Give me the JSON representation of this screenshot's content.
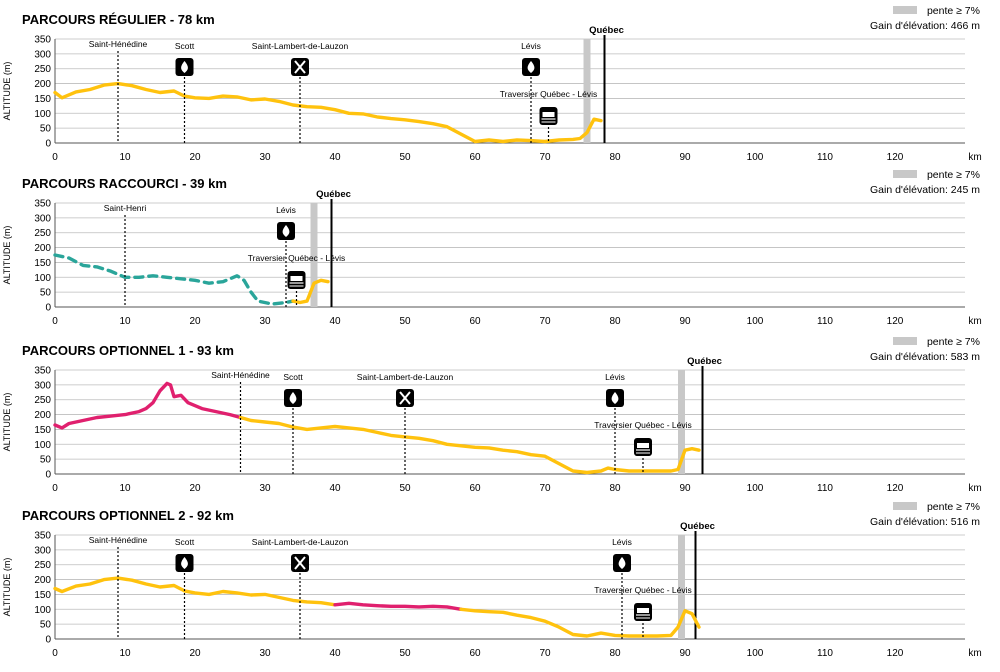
{
  "legend_label": "pente ≥ 7%",
  "x_unit": "km",
  "y_label": "ALTITUDE (m)",
  "colors": {
    "flat": "#FFC20E",
    "hilly": "#E0206E",
    "shortcut": "#2AA59A",
    "steep_band": "#C8C8C8"
  },
  "chart_data": [
    {
      "type": "line",
      "title": "PARCOURS RÉGULIER - 78 km",
      "elevation_gain": "Gain d'élévation: 466 m",
      "xlim": [
        0,
        130
      ],
      "ylim": [
        0,
        350
      ],
      "yticks": [
        0,
        50,
        100,
        150,
        200,
        250,
        300,
        350
      ],
      "xticks": [
        0,
        10,
        20,
        30,
        40,
        50,
        60,
        70,
        80,
        90,
        100,
        110,
        120
      ],
      "series": [
        {
          "style": "flat",
          "points": [
            [
              0,
              170
            ],
            [
              1,
              152
            ],
            [
              3,
              172
            ],
            [
              5,
              180
            ],
            [
              7,
              195
            ],
            [
              9,
              200
            ],
            [
              11,
              193
            ],
            [
              13,
              180
            ],
            [
              15,
              170
            ],
            [
              17,
              175
            ],
            [
              18.5,
              158
            ],
            [
              20,
              152
            ],
            [
              22,
              150
            ],
            [
              24,
              158
            ],
            [
              26,
              155
            ],
            [
              28,
              145
            ],
            [
              30,
              148
            ],
            [
              32,
              140
            ],
            [
              34,
              128
            ],
            [
              36,
              122
            ],
            [
              38,
              120
            ],
            [
              40,
              112
            ],
            [
              42,
              100
            ],
            [
              44,
              98
            ],
            [
              46,
              88
            ],
            [
              48,
              82
            ],
            [
              50,
              78
            ],
            [
              52,
              72
            ],
            [
              54,
              65
            ],
            [
              56,
              55
            ],
            [
              58,
              30
            ],
            [
              60,
              5
            ],
            [
              62,
              10
            ],
            [
              64,
              5
            ],
            [
              66,
              10
            ],
            [
              68,
              8
            ],
            [
              70,
              5
            ],
            [
              72,
              10
            ],
            [
              74,
              12
            ],
            [
              75,
              15
            ],
            [
              76,
              35
            ],
            [
              77,
              80
            ],
            [
              78,
              75
            ]
          ]
        }
      ],
      "steep_zones": [
        [
          75.5,
          76.5
        ]
      ],
      "end_km": 78.5,
      "end_label": "Québec",
      "pois": [
        {
          "km": 9,
          "label": "Saint-Hénédine",
          "icon": "none"
        },
        {
          "km": 18.5,
          "label": "Scott",
          "icon": "water-drop-icon"
        },
        {
          "km": 35,
          "label": "Saint-Lambert-de-Lauzon",
          "icon": "cutlery-icon"
        },
        {
          "km": 68,
          "label": "Lévis",
          "icon": "water-drop-icon"
        },
        {
          "km": 70.5,
          "label": "Traversier Québec - Lévis",
          "icon": "ferry-icon"
        }
      ]
    },
    {
      "type": "line",
      "title": "PARCOURS RACCOURCI - 39 km",
      "elevation_gain": "Gain d'élévation: 245 m",
      "xlim": [
        0,
        130
      ],
      "ylim": [
        0,
        350
      ],
      "yticks": [
        0,
        50,
        100,
        150,
        200,
        250,
        300,
        350
      ],
      "xticks": [
        0,
        10,
        20,
        30,
        40,
        50,
        60,
        70,
        80,
        90,
        100,
        110,
        120
      ],
      "series": [
        {
          "style": "shortcut",
          "points": [
            [
              0,
              175
            ],
            [
              2,
              165
            ],
            [
              4,
              140
            ],
            [
              6,
              135
            ],
            [
              8,
              120
            ],
            [
              10,
              100
            ],
            [
              12,
              100
            ],
            [
              14,
              105
            ],
            [
              16,
              100
            ],
            [
              18,
              95
            ],
            [
              20,
              90
            ],
            [
              22,
              80
            ],
            [
              24,
              85
            ],
            [
              26,
              105
            ],
            [
              27,
              90
            ],
            [
              28,
              50
            ],
            [
              29,
              20
            ],
            [
              31,
              10
            ],
            [
              33,
              15
            ],
            [
              34,
              20
            ]
          ]
        },
        {
          "style": "flat",
          "points": [
            [
              34,
              20
            ],
            [
              35,
              15
            ],
            [
              36,
              20
            ],
            [
              37,
              80
            ],
            [
              38,
              90
            ],
            [
              39,
              85
            ]
          ]
        }
      ],
      "steep_zones": [
        [
          36.5,
          37.5
        ]
      ],
      "end_km": 39.5,
      "end_label": "Québec",
      "pois": [
        {
          "km": 10,
          "label": "Saint-Henri",
          "icon": "none"
        },
        {
          "km": 33,
          "label": "Lévis",
          "icon": "water-drop-icon"
        },
        {
          "km": 34.5,
          "label": "Traversier Québec - Lévis",
          "icon": "ferry-icon"
        }
      ]
    },
    {
      "type": "line",
      "title": "PARCOURS OPTIONNEL 1 - 93 km",
      "elevation_gain": "Gain d'élévation: 583 m",
      "xlim": [
        0,
        130
      ],
      "ylim": [
        0,
        350
      ],
      "yticks": [
        0,
        50,
        100,
        150,
        200,
        250,
        300,
        350
      ],
      "xticks": [
        0,
        10,
        20,
        30,
        40,
        50,
        60,
        70,
        80,
        90,
        100,
        110,
        120
      ],
      "series": [
        {
          "style": "hilly",
          "points": [
            [
              0,
              165
            ],
            [
              1,
              155
            ],
            [
              2,
              170
            ],
            [
              4,
              180
            ],
            [
              6,
              190
            ],
            [
              8,
              195
            ],
            [
              10,
              200
            ],
            [
              12,
              210
            ],
            [
              13,
              220
            ],
            [
              14,
              240
            ],
            [
              15,
              280
            ],
            [
              16,
              305
            ],
            [
              16.5,
              300
            ],
            [
              17,
              260
            ],
            [
              18,
              265
            ],
            [
              19,
              240
            ],
            [
              21,
              220
            ],
            [
              23,
              210
            ],
            [
              25,
              200
            ],
            [
              26.5,
              190
            ]
          ]
        },
        {
          "style": "flat",
          "points": [
            [
              26.5,
              190
            ],
            [
              28,
              180
            ],
            [
              30,
              175
            ],
            [
              32,
              170
            ],
            [
              34,
              158
            ],
            [
              36,
              150
            ],
            [
              38,
              155
            ],
            [
              40,
              160
            ],
            [
              42,
              155
            ],
            [
              44,
              150
            ],
            [
              46,
              140
            ],
            [
              48,
              130
            ],
            [
              50,
              125
            ],
            [
              52,
              120
            ],
            [
              54,
              112
            ],
            [
              56,
              100
            ],
            [
              58,
              95
            ],
            [
              60,
              90
            ],
            [
              62,
              88
            ],
            [
              64,
              80
            ],
            [
              66,
              75
            ],
            [
              68,
              65
            ],
            [
              70,
              60
            ],
            [
              72,
              35
            ],
            [
              74,
              10
            ],
            [
              76,
              5
            ],
            [
              78,
              10
            ],
            [
              79,
              20
            ],
            [
              80,
              15
            ],
            [
              82,
              10
            ],
            [
              84,
              10
            ],
            [
              86,
              10
            ],
            [
              88,
              10
            ],
            [
              89,
              15
            ],
            [
              90,
              80
            ],
            [
              91,
              85
            ],
            [
              92,
              80
            ]
          ]
        }
      ],
      "steep_zones": [
        [
          89,
          90
        ]
      ],
      "end_km": 92.5,
      "end_label": "Québec",
      "pois": [
        {
          "km": 26.5,
          "label": "Saint-Hénédine",
          "icon": "none"
        },
        {
          "km": 34,
          "label": "Scott",
          "icon": "water-drop-icon"
        },
        {
          "km": 50,
          "label": "Saint-Lambert-de-Lauzon",
          "icon": "cutlery-icon"
        },
        {
          "km": 80,
          "label": "Lévis",
          "icon": "water-drop-icon"
        },
        {
          "km": 84,
          "label": "Traversier Québec - Lévis",
          "icon": "ferry-icon"
        }
      ]
    },
    {
      "type": "line",
      "title": "PARCOURS OPTIONNEL 2 - 92 km",
      "elevation_gain": "Gain d'élévation: 516 m",
      "xlim": [
        0,
        130
      ],
      "ylim": [
        0,
        350
      ],
      "yticks": [
        0,
        50,
        100,
        150,
        200,
        250,
        300,
        350
      ],
      "xticks": [
        0,
        10,
        20,
        30,
        40,
        50,
        60,
        70,
        80,
        90,
        100,
        110,
        120
      ],
      "series": [
        {
          "style": "flat",
          "points": [
            [
              0,
              170
            ],
            [
              1,
              160
            ],
            [
              3,
              178
            ],
            [
              5,
              185
            ],
            [
              7,
              200
            ],
            [
              9,
              205
            ],
            [
              11,
              198
            ],
            [
              13,
              185
            ],
            [
              15,
              175
            ],
            [
              17,
              180
            ],
            [
              18.5,
              162
            ],
            [
              20,
              155
            ],
            [
              22,
              150
            ],
            [
              24,
              160
            ],
            [
              26,
              155
            ],
            [
              28,
              148
            ],
            [
              30,
              150
            ],
            [
              32,
              140
            ],
            [
              34,
              130
            ],
            [
              36,
              125
            ],
            [
              38,
              122
            ],
            [
              40,
              115
            ]
          ]
        },
        {
          "style": "hilly",
          "points": [
            [
              40,
              115
            ],
            [
              42,
              120
            ],
            [
              44,
              115
            ],
            [
              46,
              112
            ],
            [
              48,
              110
            ],
            [
              50,
              110
            ],
            [
              52,
              108
            ],
            [
              54,
              110
            ],
            [
              56,
              108
            ],
            [
              58,
              100
            ]
          ]
        },
        {
          "style": "flat",
          "points": [
            [
              58,
              100
            ],
            [
              60,
              95
            ],
            [
              62,
              92
            ],
            [
              64,
              90
            ],
            [
              66,
              80
            ],
            [
              68,
              72
            ],
            [
              70,
              60
            ],
            [
              72,
              40
            ],
            [
              74,
              15
            ],
            [
              76,
              10
            ],
            [
              78,
              20
            ],
            [
              80,
              12
            ],
            [
              82,
              10
            ],
            [
              84,
              10
            ],
            [
              86,
              10
            ],
            [
              88,
              12
            ],
            [
              89,
              40
            ],
            [
              90,
              95
            ],
            [
              91,
              85
            ],
            [
              92,
              40
            ]
          ]
        }
      ],
      "steep_zones": [
        [
          89,
          90
        ]
      ],
      "end_km": 91.5,
      "end_label": "Québec",
      "pois": [
        {
          "km": 9,
          "label": "Saint-Hénédine",
          "icon": "none"
        },
        {
          "km": 18.5,
          "label": "Scott",
          "icon": "water-drop-icon"
        },
        {
          "km": 35,
          "label": "Saint-Lambert-de-Lauzon",
          "icon": "cutlery-icon"
        },
        {
          "km": 81,
          "label": "Lévis",
          "icon": "water-drop-icon"
        },
        {
          "km": 84,
          "label": "Traversier Québec - Lévis",
          "icon": "ferry-icon"
        }
      ]
    }
  ]
}
